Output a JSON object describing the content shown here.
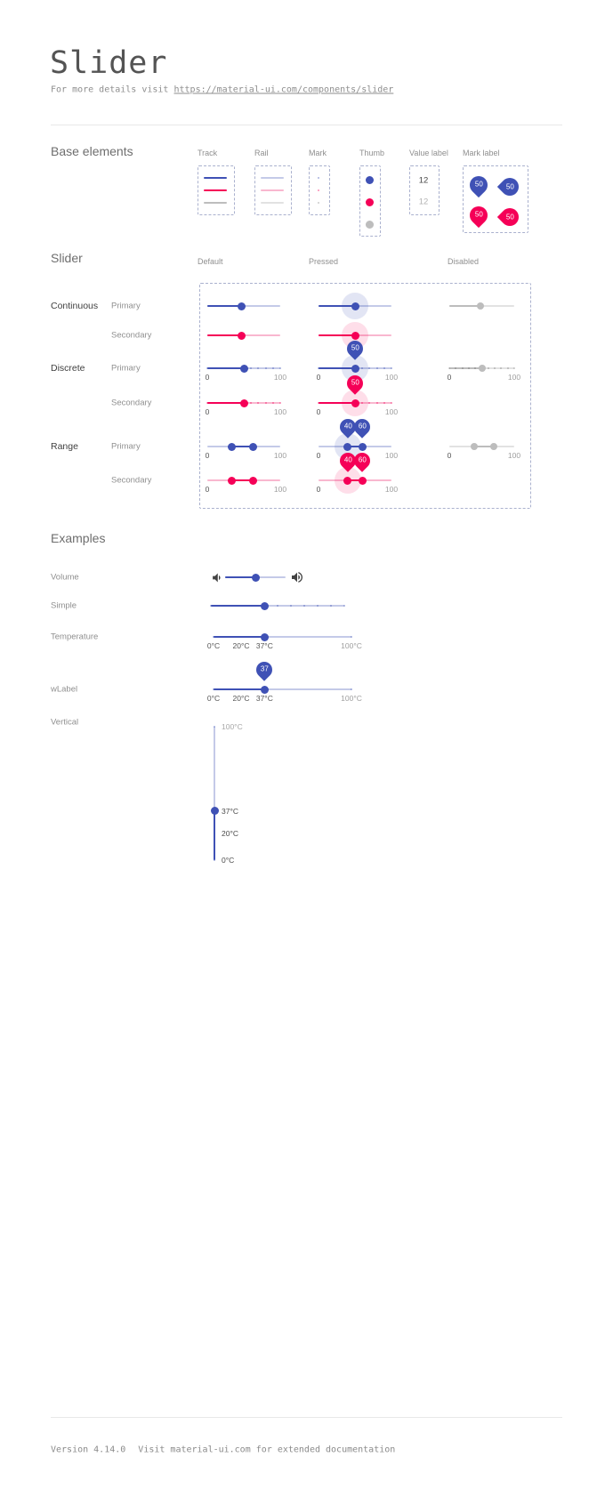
{
  "page": {
    "title": "Slider",
    "subtitle_prefix": "For more details visit ",
    "subtitle_link": "https://material-ui.com/components/slider",
    "footer_version": "Version 4.14.0",
    "footer_note": "Visit material-ui.com for extended documentation"
  },
  "colors": {
    "primary": "#3f51b5",
    "secondary": "#f50057",
    "disabled": "#bdbdbd"
  },
  "base_elements": {
    "heading": "Base elements",
    "columns": [
      "Track",
      "Rail",
      "Mark",
      "Thumb",
      "Value label",
      "Mark label"
    ],
    "value_label_values": [
      "12",
      "12"
    ],
    "mark_label_values": [
      "50",
      "50",
      "50",
      "50"
    ]
  },
  "slider_grid": {
    "heading": "Slider",
    "columns": [
      "Default",
      "Pressed",
      "Disabled"
    ],
    "scale": {
      "min": "0",
      "max": "100"
    },
    "rows": [
      {
        "group": "Continuous",
        "variant": "Primary",
        "color": "primary",
        "type": "continuous",
        "default_values": [
          47
        ],
        "pressed_values": [
          50
        ],
        "disabled_values": [
          48
        ],
        "show_scale": false
      },
      {
        "group": "",
        "variant": "Secondary",
        "color": "secondary",
        "type": "continuous",
        "default_values": [
          47
        ],
        "pressed_values": [
          50
        ],
        "show_scale": false
      },
      {
        "group": "Discrete",
        "variant": "Primary",
        "color": "primary",
        "type": "discrete",
        "default_values": [
          50
        ],
        "pressed_values": [
          50
        ],
        "pressed_labels": [
          "50"
        ],
        "disabled_values": [
          50
        ],
        "show_scale": true
      },
      {
        "group": "",
        "variant": "Secondary",
        "color": "secondary",
        "type": "discrete",
        "default_values": [
          50
        ],
        "pressed_values": [
          50
        ],
        "pressed_labels": [
          "50"
        ],
        "show_scale": true
      },
      {
        "group": "Range",
        "variant": "Primary",
        "color": "primary",
        "type": "range",
        "default_values": [
          33,
          63
        ],
        "pressed_values": [
          40,
          60
        ],
        "pressed_labels": [
          "40",
          "60"
        ],
        "disabled_values": [
          38,
          68
        ],
        "show_scale": true
      },
      {
        "group": "",
        "variant": "Secondary",
        "color": "secondary",
        "type": "range",
        "default_values": [
          33,
          63
        ],
        "pressed_values": [
          40,
          60
        ],
        "pressed_labels": [
          "40",
          "60"
        ],
        "show_scale": true
      }
    ]
  },
  "examples": {
    "heading": "Examples",
    "volume": {
      "label": "Volume",
      "value": 50
    },
    "simple": {
      "label": "Simple",
      "value": 40
    },
    "temperature": {
      "label": "Temperature",
      "value": 37,
      "marks": [
        {
          "value": 0,
          "label": "0°C"
        },
        {
          "value": 20,
          "label": "20°C"
        },
        {
          "value": 37,
          "label": "37°C"
        },
        {
          "value": 100,
          "label": "100°C"
        }
      ]
    },
    "wlabel": {
      "label": "wLabel",
      "value": 37,
      "value_label": "37",
      "marks": [
        {
          "value": 0,
          "label": "0°C"
        },
        {
          "value": 20,
          "label": "20°C"
        },
        {
          "value": 37,
          "label": "37°C"
        },
        {
          "value": 100,
          "label": "100°C"
        }
      ]
    },
    "vertical": {
      "label": "Vertical",
      "value": 37,
      "marks": [
        {
          "value": 100,
          "label": "100°C"
        },
        {
          "value": 37,
          "label": "37°C"
        },
        {
          "value": 20,
          "label": "20°C"
        },
        {
          "value": 0,
          "label": "0°C"
        }
      ]
    }
  }
}
